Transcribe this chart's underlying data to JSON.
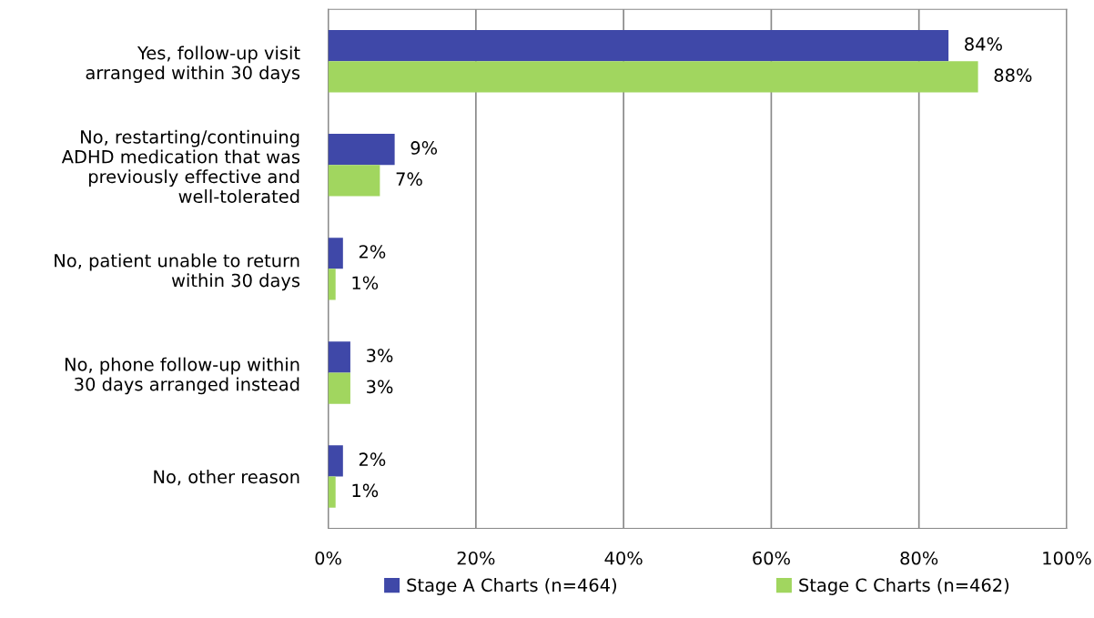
{
  "chart_data": {
    "type": "bar",
    "orientation": "horizontal",
    "categories": [
      "Yes, follow-up visit arranged within 30 days",
      "No, restarting/continuing ADHD medication that was previously effective and well-tolerated",
      "No, patient unable to return within 30 days",
      "No, phone follow-up within 30 days arranged instead",
      "No, other reason"
    ],
    "series": [
      {
        "name": "Stage A Charts (n=464)",
        "color": "#3f48a8",
        "values": [
          84,
          9,
          2,
          3,
          2
        ],
        "value_labels": [
          "84%",
          "9%",
          "2%",
          "3%",
          "2%"
        ]
      },
      {
        "name": "Stage C Charts (n=462)",
        "color": "#a1d65f",
        "values": [
          88,
          7,
          1,
          3,
          1
        ],
        "value_labels": [
          "88%",
          "7%",
          "1%",
          "3%",
          "1%"
        ]
      }
    ],
    "xlim": [
      0,
      100
    ],
    "xticks": [
      {
        "value": 0,
        "label": "0%"
      },
      {
        "value": 20,
        "label": "20%"
      },
      {
        "value": 40,
        "label": "40%"
      },
      {
        "value": 60,
        "label": "60%"
      },
      {
        "value": 80,
        "label": "80%"
      },
      {
        "value": 100,
        "label": "100%"
      }
    ],
    "grid": "x",
    "legend": "bottom"
  }
}
